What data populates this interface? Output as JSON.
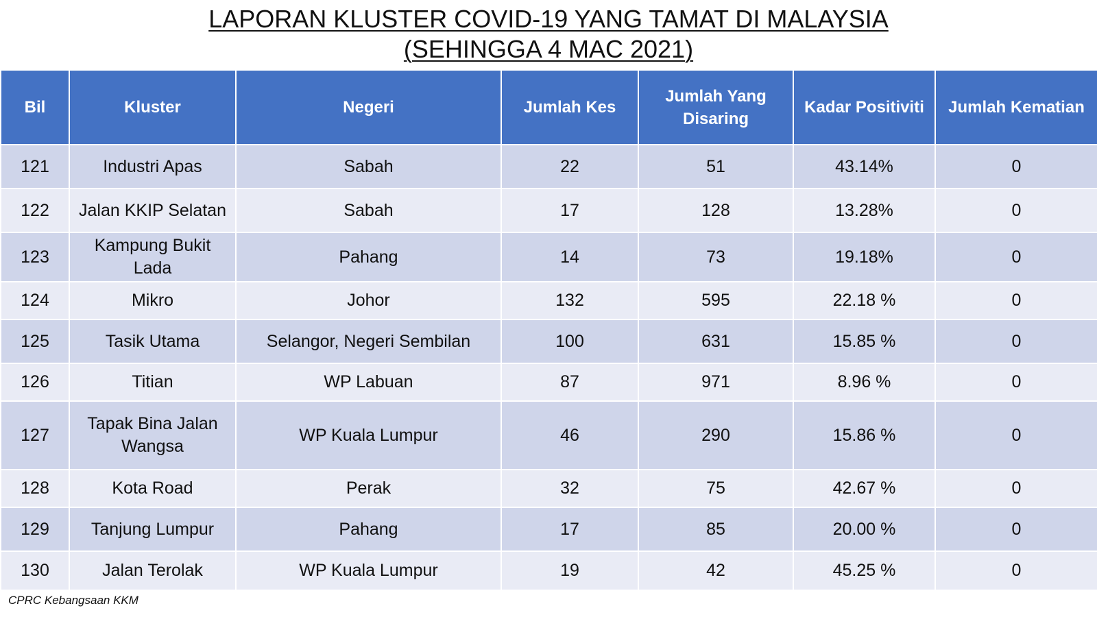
{
  "title": {
    "line1": "LAPORAN KLUSTER COVID-19 YANG TAMAT DI MALAYSIA",
    "line2": "(SEHINGGA  4 MAC 2021)"
  },
  "columns": [
    "Bil",
    "Kluster",
    "Negeri",
    "Jumlah Kes",
    "Jumlah Yang Disaring",
    "Kadar Positiviti",
    "Jumlah Kematian"
  ],
  "rows": [
    [
      "121",
      "Industri Apas",
      "Sabah",
      "22",
      "51",
      "43.14%",
      "0"
    ],
    [
      "122",
      "Jalan KKIP Selatan",
      "Sabah",
      "17",
      "128",
      "13.28%",
      "0"
    ],
    [
      "123",
      "Kampung Bukit Lada",
      "Pahang",
      "14",
      "73",
      "19.18%",
      "0"
    ],
    [
      "124",
      "Mikro",
      "Johor",
      "132",
      "595",
      "22.18 %",
      "0"
    ],
    [
      "125",
      "Tasik Utama",
      "Selangor, Negeri Sembilan",
      "100",
      "631",
      "15.85 %",
      "0"
    ],
    [
      "126",
      "Titian",
      "WP Labuan",
      "87",
      "971",
      "8.96 %",
      "0"
    ],
    [
      "127",
      "Tapak Bina Jalan Wangsa",
      "WP Kuala Lumpur",
      "46",
      "290",
      "15.86 %",
      "0"
    ],
    [
      "128",
      "Kota Road",
      "Perak",
      "32",
      "75",
      "42.67 %",
      "0"
    ],
    [
      "129",
      "Tanjung Lumpur",
      "Pahang",
      "17",
      "85",
      "20.00 %",
      "0"
    ],
    [
      "130",
      "Jalan Terolak",
      "WP Kuala Lumpur",
      "19",
      "42",
      "45.25 %",
      "0"
    ]
  ],
  "footer": "CPRC Kebangsaan KKM",
  "colors": {
    "header_bg": "#4472c4",
    "row_band_dark": "#cfd5ea",
    "row_band_light": "#e9ebf5"
  }
}
